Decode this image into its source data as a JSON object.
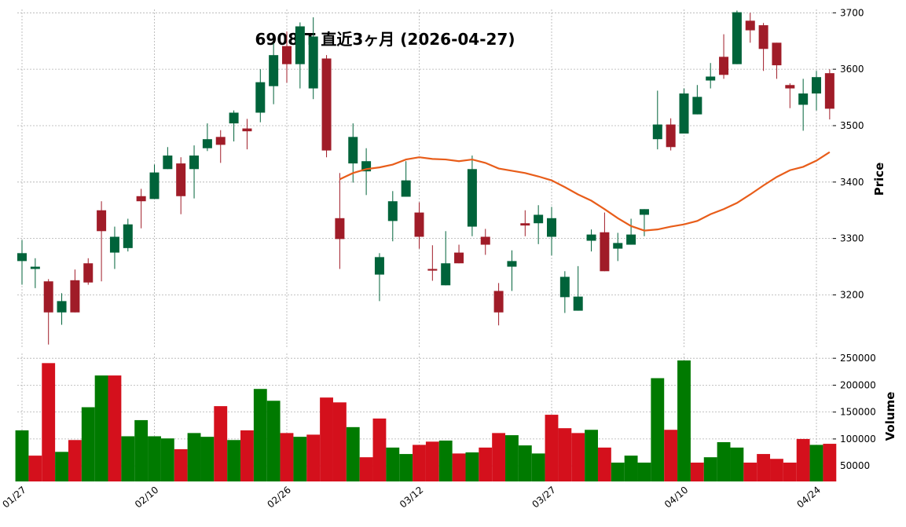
{
  "chart_data": [
    {
      "type": "candlestick",
      "title": "6908.T 直近3ヶ月 (2026-04-27)",
      "ylabel": "Price",
      "open": [
        3260,
        3246,
        3224,
        3169,
        3226,
        3256,
        3350,
        3275,
        3283,
        3375,
        3370,
        3423,
        3433,
        3423,
        3460,
        3480,
        3504,
        3495,
        3523,
        3570,
        3641,
        3609,
        3566,
        3619,
        3336,
        3433,
        3419,
        3236,
        3331,
        3374,
        3346,
        3246,
        3217,
        3275,
        3321,
        3303,
        3207,
        3250,
        3327,
        3327,
        3303,
        3196,
        3172,
        3296,
        3311,
        3282,
        3289,
        3342,
        3476,
        3502,
        3486,
        3520,
        3580,
        3622,
        3609,
        3686,
        3678,
        3647,
        3572,
        3537,
        3557,
        3593
      ],
      "high": [
        3297,
        3265,
        3228,
        3203,
        3245,
        3265,
        3366,
        3321,
        3335,
        3388,
        3431,
        3462,
        3444,
        3465,
        3504,
        3492,
        3527,
        3512,
        3600,
        3646,
        3667,
        3683,
        3692,
        3625,
        3416,
        3504,
        3460,
        3274,
        3384,
        3437,
        3364,
        3288,
        3313,
        3289,
        3447,
        3317,
        3221,
        3279,
        3350,
        3359,
        3356,
        3242,
        3251,
        3316,
        3346,
        3310,
        3335,
        3352,
        3562,
        3513,
        3566,
        3572,
        3611,
        3662,
        3704,
        3700,
        3682,
        3647,
        3575,
        3583,
        3597,
        3600
      ],
      "low": [
        3218,
        3212,
        3112,
        3147,
        3169,
        3218,
        3224,
        3246,
        3277,
        3318,
        3370,
        3423,
        3343,
        3371,
        3455,
        3434,
        3472,
        3458,
        3506,
        3538,
        3576,
        3566,
        3547,
        3444,
        3246,
        3399,
        3377,
        3189,
        3295,
        3374,
        3282,
        3225,
        3217,
        3256,
        3304,
        3271,
        3146,
        3207,
        3304,
        3290,
        3270,
        3168,
        3172,
        3277,
        3242,
        3260,
        3289,
        3304,
        3458,
        3456,
        3486,
        3520,
        3566,
        3583,
        3609,
        3647,
        3597,
        3583,
        3531,
        3491,
        3527,
        3511
      ],
      "close": [
        3274,
        3250,
        3169,
        3189,
        3169,
        3222,
        3313,
        3303,
        3325,
        3366,
        3417,
        3447,
        3375,
        3447,
        3476,
        3466,
        3523,
        3490,
        3577,
        3625,
        3609,
        3676,
        3658,
        3456,
        3299,
        3480,
        3437,
        3267,
        3366,
        3403,
        3303,
        3243,
        3256,
        3256,
        3423,
        3289,
        3169,
        3260,
        3323,
        3342,
        3336,
        3232,
        3197,
        3307,
        3242,
        3292,
        3307,
        3352,
        3502,
        3462,
        3557,
        3551,
        3587,
        3590,
        3701,
        3669,
        3636,
        3607,
        3566,
        3557,
        3586,
        3530
      ],
      "up_color": "#00633a",
      "down_color": "#a01c28",
      "line": {
        "color": "#e85d1a",
        "values": [
          null,
          null,
          null,
          null,
          null,
          null,
          null,
          null,
          null,
          null,
          null,
          null,
          null,
          null,
          null,
          null,
          null,
          null,
          null,
          null,
          null,
          null,
          null,
          null,
          3405,
          3416,
          3423,
          3426,
          3431,
          3440,
          3444,
          3441,
          3440,
          3437,
          3440,
          3434,
          3424,
          3420,
          3416,
          3410,
          3403,
          3391,
          3378,
          3367,
          3352,
          3336,
          3322,
          3314,
          3316,
          3321,
          3325,
          3331,
          3343,
          3352,
          3363,
          3378,
          3394,
          3409,
          3421,
          3427,
          3438,
          3453
        ]
      },
      "ylim": [
        3106,
        3706
      ],
      "yticks": [
        3200,
        3300,
        3400,
        3500,
        3600,
        3700
      ],
      "grid": true
    },
    {
      "type": "bar",
      "ylabel": "Volume",
      "categories": [
        "01/27",
        null,
        null,
        null,
        null,
        null,
        null,
        null,
        null,
        null,
        "02/10",
        null,
        null,
        null,
        null,
        null,
        null,
        null,
        null,
        null,
        "02/26",
        null,
        null,
        null,
        null,
        null,
        null,
        null,
        null,
        null,
        "03/12",
        null,
        null,
        null,
        null,
        null,
        null,
        null,
        null,
        null,
        "03/27",
        null,
        null,
        null,
        null,
        null,
        null,
        null,
        null,
        null,
        "04/10",
        null,
        null,
        null,
        null,
        null,
        null,
        null,
        null,
        null,
        "04/24",
        null
      ],
      "values": [
        116000,
        69000,
        241000,
        76000,
        98000,
        159000,
        218000,
        218000,
        105000,
        135000,
        105000,
        101000,
        81000,
        111000,
        104000,
        161000,
        98000,
        116000,
        193000,
        171000,
        111000,
        104000,
        108000,
        177000,
        168000,
        122000,
        66000,
        138000,
        84000,
        72000,
        89000,
        95000,
        97000,
        73000,
        75000,
        84000,
        111000,
        107000,
        88000,
        73000,
        145000,
        120000,
        111000,
        117000,
        84000,
        56000,
        69000,
        56000,
        213000,
        117000,
        246000,
        56000,
        66000,
        94000,
        84000,
        56000,
        72000,
        63000,
        56000,
        100000,
        89000,
        91000
      ],
      "colors": [
        "#007a00",
        "#d4101c",
        "#d4101c",
        "#007a00",
        "#d4101c",
        "#007a00",
        "#007a00",
        "#d4101c",
        "#007a00",
        "#007a00",
        "#007a00",
        "#007a00",
        "#d4101c",
        "#007a00",
        "#007a00",
        "#d4101c",
        "#007a00",
        "#d4101c",
        "#007a00",
        "#007a00",
        "#d4101c",
        "#007a00",
        "#d4101c",
        "#d4101c",
        "#d4101c",
        "#007a00",
        "#d4101c",
        "#d4101c",
        "#007a00",
        "#007a00",
        "#d4101c",
        "#d4101c",
        "#007a00",
        "#d4101c",
        "#007a00",
        "#d4101c",
        "#d4101c",
        "#007a00",
        "#007a00",
        "#007a00",
        "#d4101c",
        "#d4101c",
        "#d4101c",
        "#007a00",
        "#d4101c",
        "#007a00",
        "#007a00",
        "#007a00",
        "#007a00",
        "#d4101c",
        "#007a00",
        "#d4101c",
        "#007a00",
        "#007a00",
        "#007a00",
        "#d4101c",
        "#d4101c",
        "#d4101c",
        "#d4101c",
        "#d4101c",
        "#007a00",
        "#d4101c"
      ],
      "ylim": [
        21000,
        259000
      ],
      "yticks": [
        50000,
        100000,
        150000,
        200000,
        250000
      ],
      "grid": true
    }
  ]
}
